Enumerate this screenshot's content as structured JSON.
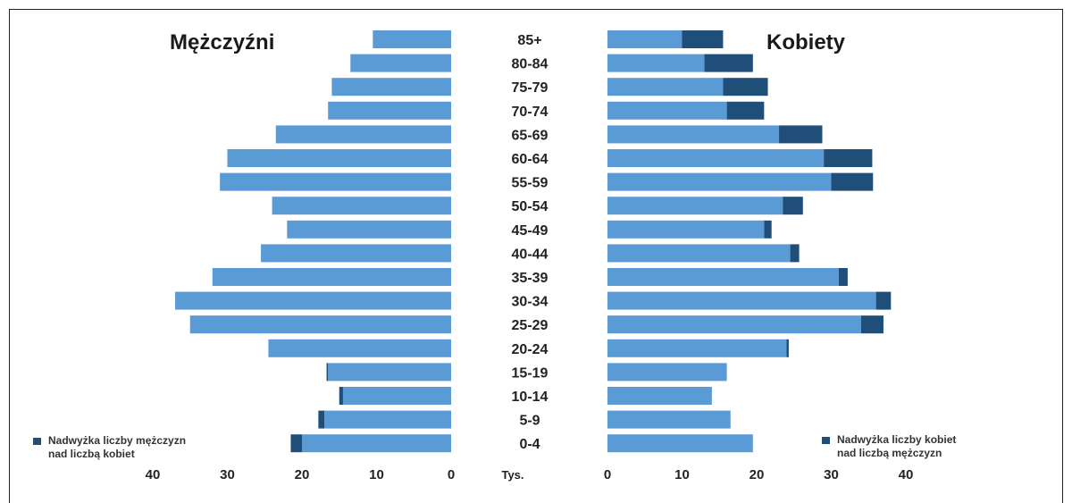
{
  "titles": {
    "left": "Mężczyźni",
    "right": "Kobiety"
  },
  "legend": {
    "left": "Nadwyżka liczby mężczyzn\nnad liczbą kobiet",
    "right": "Nadwyżka liczby kobiet\nnad liczbą mężczyzn"
  },
  "colors": {
    "base": "#5b9bd5",
    "surplus": "#1f4e79"
  },
  "chart_data": {
    "type": "bar",
    "orientation": "horizontal-population-pyramid",
    "categories": [
      "85+",
      "80-84",
      "75-79",
      "70-74",
      "65-69",
      "60-64",
      "55-59",
      "50-54",
      "45-49",
      "40-44",
      "35-39",
      "30-34",
      "25-29",
      "20-24",
      "15-19",
      "10-14",
      "5-9",
      "0-4"
    ],
    "unit_label": "Tys.",
    "axis_ticks": [
      40,
      30,
      20,
      10,
      0
    ],
    "xlim": [
      0,
      40
    ],
    "series": [
      {
        "name": "Mężczyźni",
        "side": "left",
        "values": [
          10.5,
          13.5,
          16,
          16.5,
          23.5,
          30,
          31,
          24,
          22,
          25.5,
          32,
          37,
          35,
          24.5,
          16.5,
          14.5,
          17,
          20
        ]
      },
      {
        "name": "Kobiety",
        "side": "right",
        "values": [
          10,
          13,
          15.5,
          16,
          23,
          29,
          30,
          23.5,
          21,
          24.5,
          31,
          36,
          34,
          24,
          16,
          14,
          16.5,
          19.5
        ]
      },
      {
        "name": "Nadwyżka liczby mężczyzn nad liczbą kobiet",
        "side": "left",
        "values": [
          0,
          0,
          0,
          0,
          0,
          0,
          0,
          0,
          0,
          0,
          0,
          0,
          0,
          0,
          0.2,
          0.5,
          0.8,
          1.5
        ]
      },
      {
        "name": "Nadwyżka liczby kobiet nad liczbą mężczyzn",
        "side": "right",
        "values": [
          5.5,
          6.5,
          6,
          5,
          5.8,
          6.5,
          5.6,
          2.7,
          1.0,
          1.2,
          1.2,
          2.0,
          3.0,
          0.3,
          0,
          0,
          0,
          0
        ]
      }
    ]
  }
}
